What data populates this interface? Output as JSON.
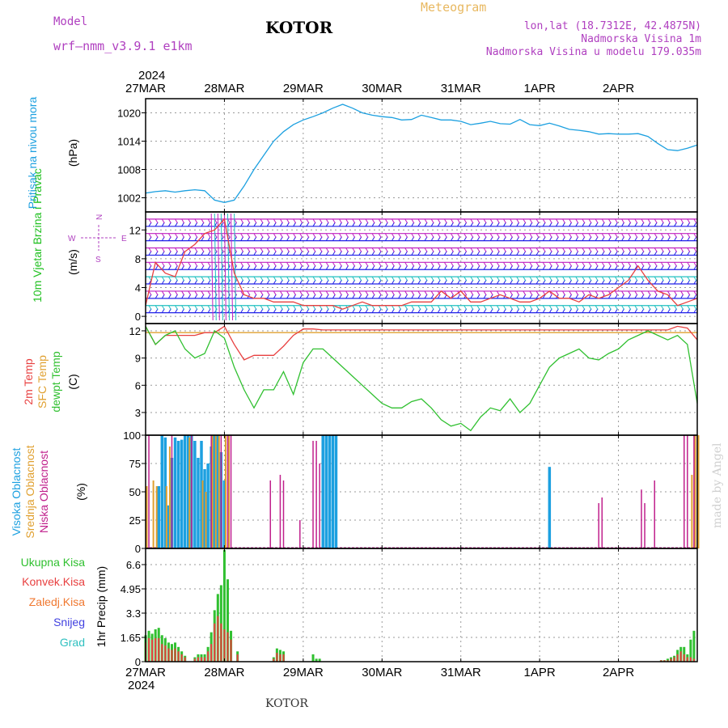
{
  "header": {
    "model_label": "Model",
    "model_name": "wrf—nmm_v3.9.1  e1km",
    "title": "KOTOR",
    "meteogram": "Meteogram",
    "lonlat": "lon,lat (18.7312E, 42.4875N)",
    "elevation": "Nadmorska Visina 1m",
    "model_elevation": "Nadmorska Visina u modelu 179.035m"
  },
  "year_label": "2024",
  "footer_station": "KOTOR",
  "credit": "made by Angel",
  "compass": {
    "n": "N",
    "w": "W",
    "e": "E",
    "s": "S"
  },
  "colors": {
    "pressure": "#1ca0e0",
    "wind_label": "#20c020",
    "temp2m": "#e84040",
    "sfc_temp": "#e0a030",
    "dewpt": "#30c030",
    "high_cloud": "#1ca0e0",
    "mid_cloud": "#e0a030",
    "low_cloud": "#c0208c",
    "total_precip": "#30c030",
    "conv_precip": "#e84040",
    "frz_precip": "#f07830",
    "snow": "#4040e0",
    "hail": "#30c0c0",
    "wind_magenta": "#c020c0",
    "wind_blue": "#2020e8",
    "wind_cyan": "#20c0c0"
  },
  "chart_data": [
    {
      "type": "line",
      "panel": "pressure",
      "ylabel_name": "Pritisak na nivou mora",
      "ylabel_unit": "(hPa)",
      "x_ticks": [
        "27MAR",
        "28MAR",
        "29MAR",
        "30MAR",
        "31MAR",
        "1APR",
        "2APR"
      ],
      "y_ticks": [
        "1002",
        "1008",
        "1014",
        "1020"
      ],
      "ylim": [
        999,
        1023
      ],
      "x_hours": [
        0,
        3,
        6,
        9,
        12,
        15,
        18,
        21,
        24,
        27,
        30,
        33,
        36,
        39,
        42,
        45,
        48,
        51,
        54,
        57,
        60,
        63,
        66,
        69,
        72,
        75,
        78,
        81,
        84,
        87,
        90,
        93,
        96,
        99,
        102,
        105,
        108,
        111,
        114,
        117,
        120,
        123,
        126,
        129,
        132,
        135,
        138,
        141,
        144,
        147,
        150,
        153,
        156,
        159,
        162,
        165,
        168
      ],
      "values": [
        1003,
        1003.3,
        1003.5,
        1003.2,
        1003.5,
        1003.7,
        1003.5,
        1001.5,
        1001,
        1001.5,
        1004.5,
        1008,
        1011,
        1014,
        1016,
        1017.5,
        1018.5,
        1019.2,
        1020,
        1021,
        1021.8,
        1021,
        1020,
        1019.5,
        1019.2,
        1019,
        1018.5,
        1018.6,
        1019.5,
        1019,
        1018.5,
        1018.5,
        1018.2,
        1017.5,
        1017.8,
        1018.2,
        1017.7,
        1017.6,
        1018.6,
        1017.5,
        1017.3,
        1017.8,
        1017.2,
        1016.5,
        1016.3,
        1016,
        1015.5,
        1015.6,
        1015.5,
        1015.5,
        1015.6,
        1015,
        1013.5,
        1012.2,
        1012,
        1012.5,
        1013.2
      ],
      "grid": true
    },
    {
      "type": "line",
      "panel": "wind",
      "ylabel_name": "10m Vjetar Brzina i Pravac",
      "ylabel_unit": "(m/s)",
      "y_ticks": [
        "0",
        "4",
        "8",
        "12"
      ],
      "ylim": [
        -1,
        14.5
      ],
      "x_hours": [
        0,
        3,
        6,
        9,
        12,
        15,
        18,
        21,
        24,
        27,
        30,
        33,
        36,
        39,
        42,
        45,
        48,
        51,
        54,
        57,
        60,
        63,
        66,
        69,
        72,
        75,
        78,
        81,
        84,
        87,
        90,
        93,
        96,
        99,
        102,
        105,
        108,
        111,
        114,
        117,
        120,
        123,
        126,
        129,
        132,
        135,
        138,
        141,
        144,
        147,
        150,
        153,
        156,
        159,
        162,
        165,
        168
      ],
      "values": [
        1.5,
        7.5,
        6,
        5.5,
        9,
        10,
        11.5,
        12,
        13.5,
        6,
        3,
        2.5,
        2.5,
        2,
        2,
        2,
        1.5,
        1.5,
        1.5,
        1.5,
        1,
        1.5,
        2,
        1.5,
        1.5,
        1.5,
        1.5,
        2,
        2,
        2,
        3.5,
        2.5,
        3.5,
        2,
        2,
        2.5,
        3,
        2.5,
        2,
        2,
        2.5,
        3.5,
        2.5,
        2.5,
        2,
        3,
        2.5,
        3,
        4,
        5,
        7,
        5,
        3.5,
        3,
        1.5,
        2,
        2.5
      ],
      "barb_levels": [
        0.5,
        1.5,
        2.5,
        3.5,
        4.5,
        5.5,
        6.5,
        7.5,
        8.5,
        9.5,
        10.5,
        11.5,
        12.5,
        13.5
      ],
      "grid": true
    },
    {
      "type": "line",
      "panel": "temperature",
      "ylabel_names": [
        "2m Temp",
        "SFC Temp",
        "dewpt Temp"
      ],
      "ylabel_unit": "(C)",
      "y_ticks": [
        "3",
        "6",
        "9",
        "12"
      ],
      "ylim": [
        0.5,
        12.8
      ],
      "x_hours": [
        0,
        3,
        6,
        9,
        12,
        15,
        18,
        21,
        24,
        27,
        30,
        33,
        36,
        39,
        42,
        45,
        48,
        51,
        54,
        57,
        60,
        63,
        66,
        69,
        72,
        75,
        78,
        81,
        84,
        87,
        90,
        93,
        96,
        99,
        102,
        105,
        108,
        111,
        114,
        117,
        120,
        123,
        126,
        129,
        132,
        135,
        138,
        141,
        144,
        147,
        150,
        153,
        156,
        159,
        162,
        165,
        168
      ],
      "series": [
        {
          "name": "2m Temp",
          "values": [
            12.5,
            10.5,
            11.5,
            11.5,
            11.5,
            11.5,
            11.8,
            11.8,
            12.5,
            10.5,
            8.8,
            9.3,
            9.3,
            9.3,
            10.3,
            11.5,
            12.2,
            12.2,
            12.1,
            12.1,
            12.1,
            12.1,
            12.1,
            12.1,
            12.1,
            12.1,
            12.1,
            12.1,
            12.1,
            12.1,
            12.1,
            12.1,
            12.1,
            12.1,
            12.1,
            12.1,
            12.1,
            12.1,
            12.1,
            12.1,
            12.1,
            12.1,
            12.1,
            12.1,
            12.1,
            12.1,
            12.1,
            12.1,
            12.1,
            12.1,
            12.1,
            12.1,
            12.1,
            12.1,
            12.5,
            12.3,
            11.0
          ]
        },
        {
          "name": "SFC Temp",
          "values": [
            11.8,
            11.8,
            11.8,
            11.8,
            11.8,
            11.8,
            11.8,
            11.8,
            11.8,
            11.8,
            11.8,
            11.8,
            11.8,
            11.8,
            11.8,
            11.8,
            11.8,
            11.8,
            11.8,
            11.8,
            11.8,
            11.8,
            11.8,
            11.8,
            11.8,
            11.8,
            11.8,
            11.8,
            11.8,
            11.8,
            11.8,
            11.8,
            11.8,
            11.8,
            11.8,
            11.8,
            11.8,
            11.8,
            11.8,
            11.8,
            11.8,
            11.8,
            11.8,
            11.8,
            11.8,
            11.8,
            11.8,
            11.8,
            11.8,
            11.8,
            11.8,
            11.8,
            11.8,
            11.8,
            11.8,
            11.8,
            11.8
          ]
        },
        {
          "name": "dewpt Temp",
          "values": [
            12.5,
            10.5,
            11.5,
            12,
            10,
            9,
            9.5,
            12,
            11.2,
            8,
            5.5,
            3.5,
            5.5,
            5.5,
            7.5,
            5,
            8.5,
            10,
            10,
            9,
            8,
            7,
            6,
            5,
            4,
            3.5,
            3.5,
            4.2,
            4.5,
            3.5,
            2.2,
            1.5,
            1.8,
            1,
            2.5,
            3.5,
            3.2,
            4.5,
            3,
            4,
            6,
            8,
            9,
            9.5,
            10,
            9,
            8.8,
            9.5,
            10,
            11,
            11.5,
            12,
            11.5,
            11,
            11.5,
            10.5,
            4
          ]
        }
      ],
      "grid": true
    },
    {
      "type": "bar",
      "panel": "clouds",
      "ylabel_names": [
        "Visoka Oblacnost",
        "Srednja Oblacnost",
        "Niska Oblacnost"
      ],
      "ylabel_unit": "(%)",
      "y_ticks": [
        "0",
        "25",
        "50",
        "75",
        "100"
      ],
      "ylim": [
        0,
        100
      ],
      "series": [
        {
          "name": "Visoka Oblacnost",
          "x_hours": [
            4,
            5,
            6,
            7,
            8,
            9,
            10,
            11,
            12,
            13,
            14,
            15,
            16,
            17,
            18,
            19,
            20,
            21,
            22,
            23,
            24,
            54,
            55,
            56,
            57,
            58,
            123
          ],
          "values": [
            55,
            100,
            98,
            38,
            80,
            98,
            95,
            96,
            100,
            100,
            100,
            95,
            80,
            95,
            70,
            75,
            90,
            100,
            100,
            85,
            60,
            100,
            100,
            100,
            100,
            100,
            72
          ]
        },
        {
          "name": "Srednja Oblacnost",
          "x_hours": [
            0,
            2,
            3,
            6,
            7,
            13,
            17,
            18,
            20,
            21,
            22,
            24,
            25,
            166,
            167,
            168
          ],
          "values": [
            55,
            60,
            55,
            55,
            90,
            98,
            60,
            50,
            100,
            100,
            100,
            100,
            100,
            65,
            100,
            100
          ]
        },
        {
          "name": "Niska Oblacnost",
          "x_hours": [
            1,
            8,
            14,
            20,
            23,
            25,
            26,
            38,
            41,
            42,
            47,
            51,
            52,
            53,
            138,
            139,
            151,
            152,
            155,
            164,
            165,
            167
          ],
          "values": [
            100,
            100,
            100,
            100,
            100,
            100,
            100,
            60,
            65,
            60,
            25,
            95,
            95,
            75,
            40,
            45,
            52,
            40,
            60,
            100,
            100,
            100
          ]
        }
      ],
      "grid": true
    },
    {
      "type": "bar",
      "panel": "precipitation",
      "legend": [
        "Ukupna Kisa",
        "Konvek.Kisa",
        "Zaledj.Kisa",
        "Snijeg",
        "Grad"
      ],
      "ylabel_name": "1hr Precip",
      "ylabel_unit": "(mm)",
      "y_ticks": [
        "0",
        "1.65",
        "3.3",
        "4.95",
        "6.6"
      ],
      "ylim": [
        0,
        7.7
      ],
      "series": [
        {
          "name": "Ukupna Kisa",
          "x_hours": [
            0,
            1,
            2,
            3,
            4,
            5,
            6,
            7,
            8,
            9,
            10,
            11,
            12,
            15,
            16,
            17,
            18,
            19,
            20,
            21,
            22,
            23,
            24,
            25,
            26,
            28,
            39,
            40,
            41,
            42,
            51,
            52,
            53,
            157,
            158,
            159,
            160,
            161,
            162,
            163,
            164,
            165,
            166,
            167
          ],
          "values": [
            1.8,
            2.1,
            1.9,
            2.2,
            2.3,
            1.8,
            1.6,
            1.3,
            1.2,
            1.3,
            1,
            0.7,
            0.4,
            0.3,
            0.5,
            0.5,
            0.5,
            1,
            2,
            3.5,
            4.6,
            5.2,
            7.6,
            5.6,
            2.1,
            0.7,
            0.3,
            0.9,
            0.8,
            0.7,
            0.5,
            0.2,
            0.2,
            0.1,
            0.1,
            0.2,
            0.3,
            0.4,
            0.8,
            1,
            1,
            0.5,
            1.5,
            2.1
          ]
        },
        {
          "name": "Konvek.Kisa",
          "x_hours": [
            0,
            1,
            2,
            3,
            4,
            5,
            6,
            7,
            8,
            9,
            10,
            11,
            12,
            15,
            16,
            17,
            18,
            19,
            20,
            21,
            22,
            23,
            24,
            25,
            26,
            28,
            39,
            40,
            41,
            42,
            157,
            158,
            159,
            160,
            161,
            162,
            163,
            164,
            165,
            166,
            167
          ],
          "values": [
            1.3,
            1.6,
            1.5,
            1.6,
            1.6,
            1.2,
            1.1,
            0.9,
            0.8,
            0.9,
            0.7,
            0.5,
            0.3,
            0.2,
            0.3,
            0.3,
            0.3,
            0.7,
            1.2,
            2.6,
            3.1,
            2.6,
            2.2,
            2,
            1.5,
            0.5,
            0.2,
            0.6,
            0.5,
            0.5,
            0.1,
            0.1,
            0.1,
            0.2,
            0.3,
            0.5,
            0.7,
            0.5,
            0.3,
            0.3,
            0.2
          ]
        }
      ],
      "grid": true
    }
  ]
}
